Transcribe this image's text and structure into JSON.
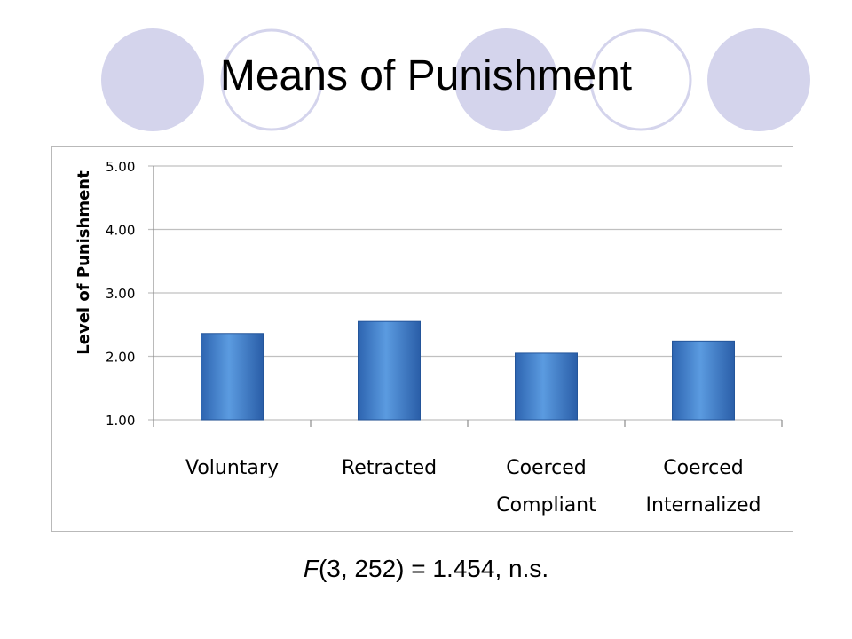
{
  "slide": {
    "title": "Means of Punishment",
    "caption_f": "F",
    "caption_rest": "(3, 252) = 1.454, n.s."
  },
  "colors": {
    "circle_fill": "#d4d4ec",
    "circle_outline": "#d4d4ec",
    "bar_light": "#5b9be0",
    "bar_dark": "#2d64b0",
    "gridline": "#c0c0c0",
    "frame": "#b9b9b9"
  },
  "chart_data": {
    "type": "bar",
    "categories": [
      "Voluntary",
      "Retracted",
      "Coerced Compliant",
      "Coerced Internalized"
    ],
    "category_lines": [
      [
        "Voluntary"
      ],
      [
        "Retracted"
      ],
      [
        "Coerced",
        "Compliant"
      ],
      [
        "Coerced",
        "Internalized"
      ]
    ],
    "values": [
      2.36,
      2.55,
      2.05,
      2.24
    ],
    "ylabel": "Level of Punishment",
    "xlabel": "",
    "ylim": [
      1.0,
      5.0
    ],
    "yticks": [
      "1.00",
      "2.00",
      "3.00",
      "4.00",
      "5.00"
    ],
    "grid": true,
    "legend": false
  }
}
